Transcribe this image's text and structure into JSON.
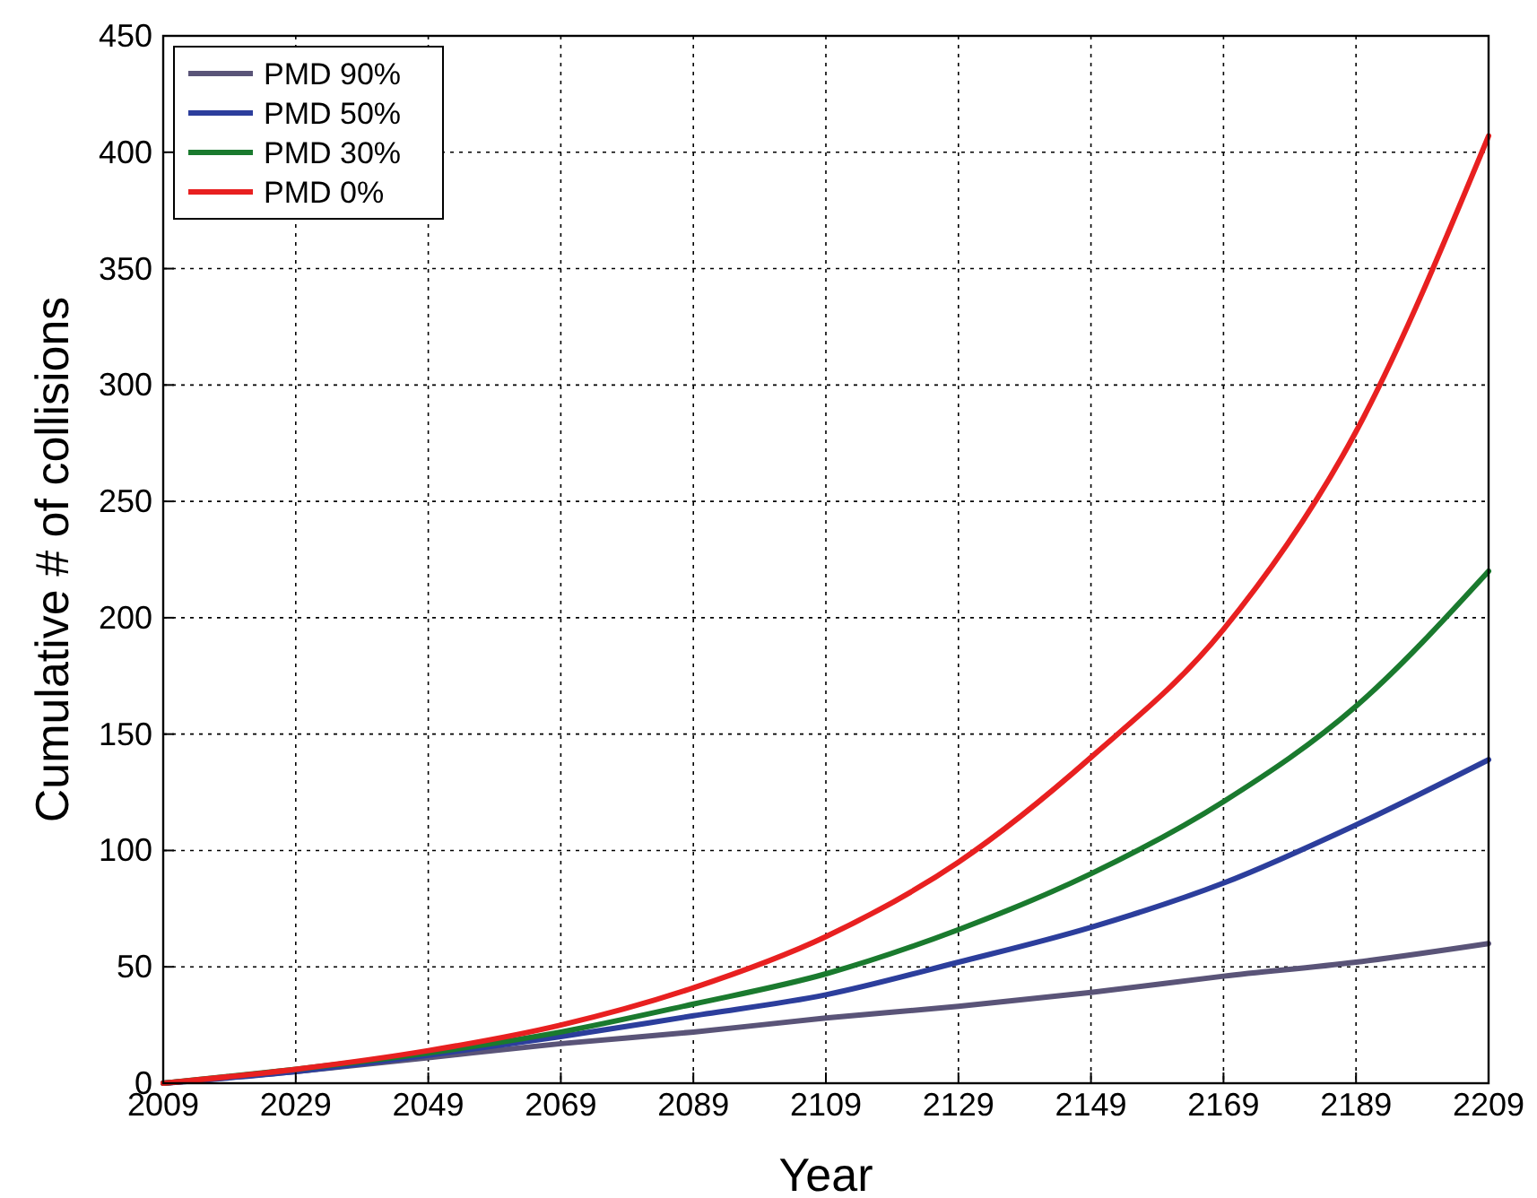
{
  "chart_data": {
    "type": "line",
    "xlabel": "Year",
    "ylabel": "Cumulative # of collisions",
    "x": [
      2009,
      2029,
      2049,
      2069,
      2089,
      2109,
      2129,
      2149,
      2169,
      2189,
      2209
    ],
    "series": [
      {
        "name": "PMD 90%",
        "color": "#5a5478",
        "values": [
          0,
          5,
          11,
          17,
          22,
          28,
          33,
          39,
          46,
          52,
          60
        ]
      },
      {
        "name": "PMD 50%",
        "color": "#2c3e9c",
        "values": [
          0,
          5,
          12,
          20,
          29,
          38,
          52,
          67,
          86,
          111,
          139
        ]
      },
      {
        "name": "PMD 30%",
        "color": "#1a7a2e",
        "values": [
          0,
          6,
          13,
          22,
          34,
          47,
          66,
          90,
          121,
          162,
          220
        ]
      },
      {
        "name": "PMD 0%",
        "color": "#e82020",
        "values": [
          0,
          6,
          14,
          25,
          41,
          63,
          95,
          140,
          195,
          280,
          407
        ]
      }
    ],
    "xlim": [
      2009,
      2209
    ],
    "xticks": [
      2009,
      2029,
      2049,
      2069,
      2089,
      2109,
      2129,
      2149,
      2169,
      2189,
      2209
    ],
    "ylim": [
      0,
      450
    ],
    "yticks": [
      0,
      50,
      100,
      150,
      200,
      250,
      300,
      350,
      400,
      450
    ],
    "grid": true,
    "legend": "top left",
    "marker": "none",
    "line_style": "solid"
  }
}
